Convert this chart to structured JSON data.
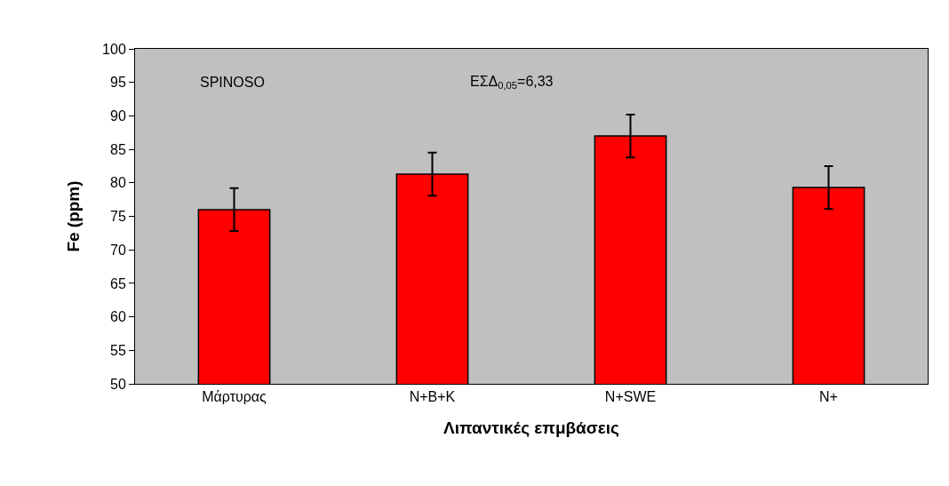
{
  "chart_data": {
    "type": "bar",
    "xlabel": "Λιπαντικές επμβάσεις",
    "ylabel": "Fe (ppm)",
    "categories": [
      "Μάρτυρας",
      "N+B+K",
      "N+SWE",
      "N+"
    ],
    "values": [
      76,
      81.3,
      87,
      79.3
    ],
    "errors": [
      3.2,
      3.2,
      3.2,
      3.2
    ],
    "color": "#ff0000",
    "ylim": [
      50,
      100
    ],
    "yticks": [
      50,
      55,
      60,
      65,
      70,
      75,
      80,
      85,
      90,
      95,
      100
    ],
    "grid": false,
    "legend": false,
    "annotations": [
      "SPINOSO",
      "ΕΣΔ$_{0,05}$=6,33"
    ]
  }
}
